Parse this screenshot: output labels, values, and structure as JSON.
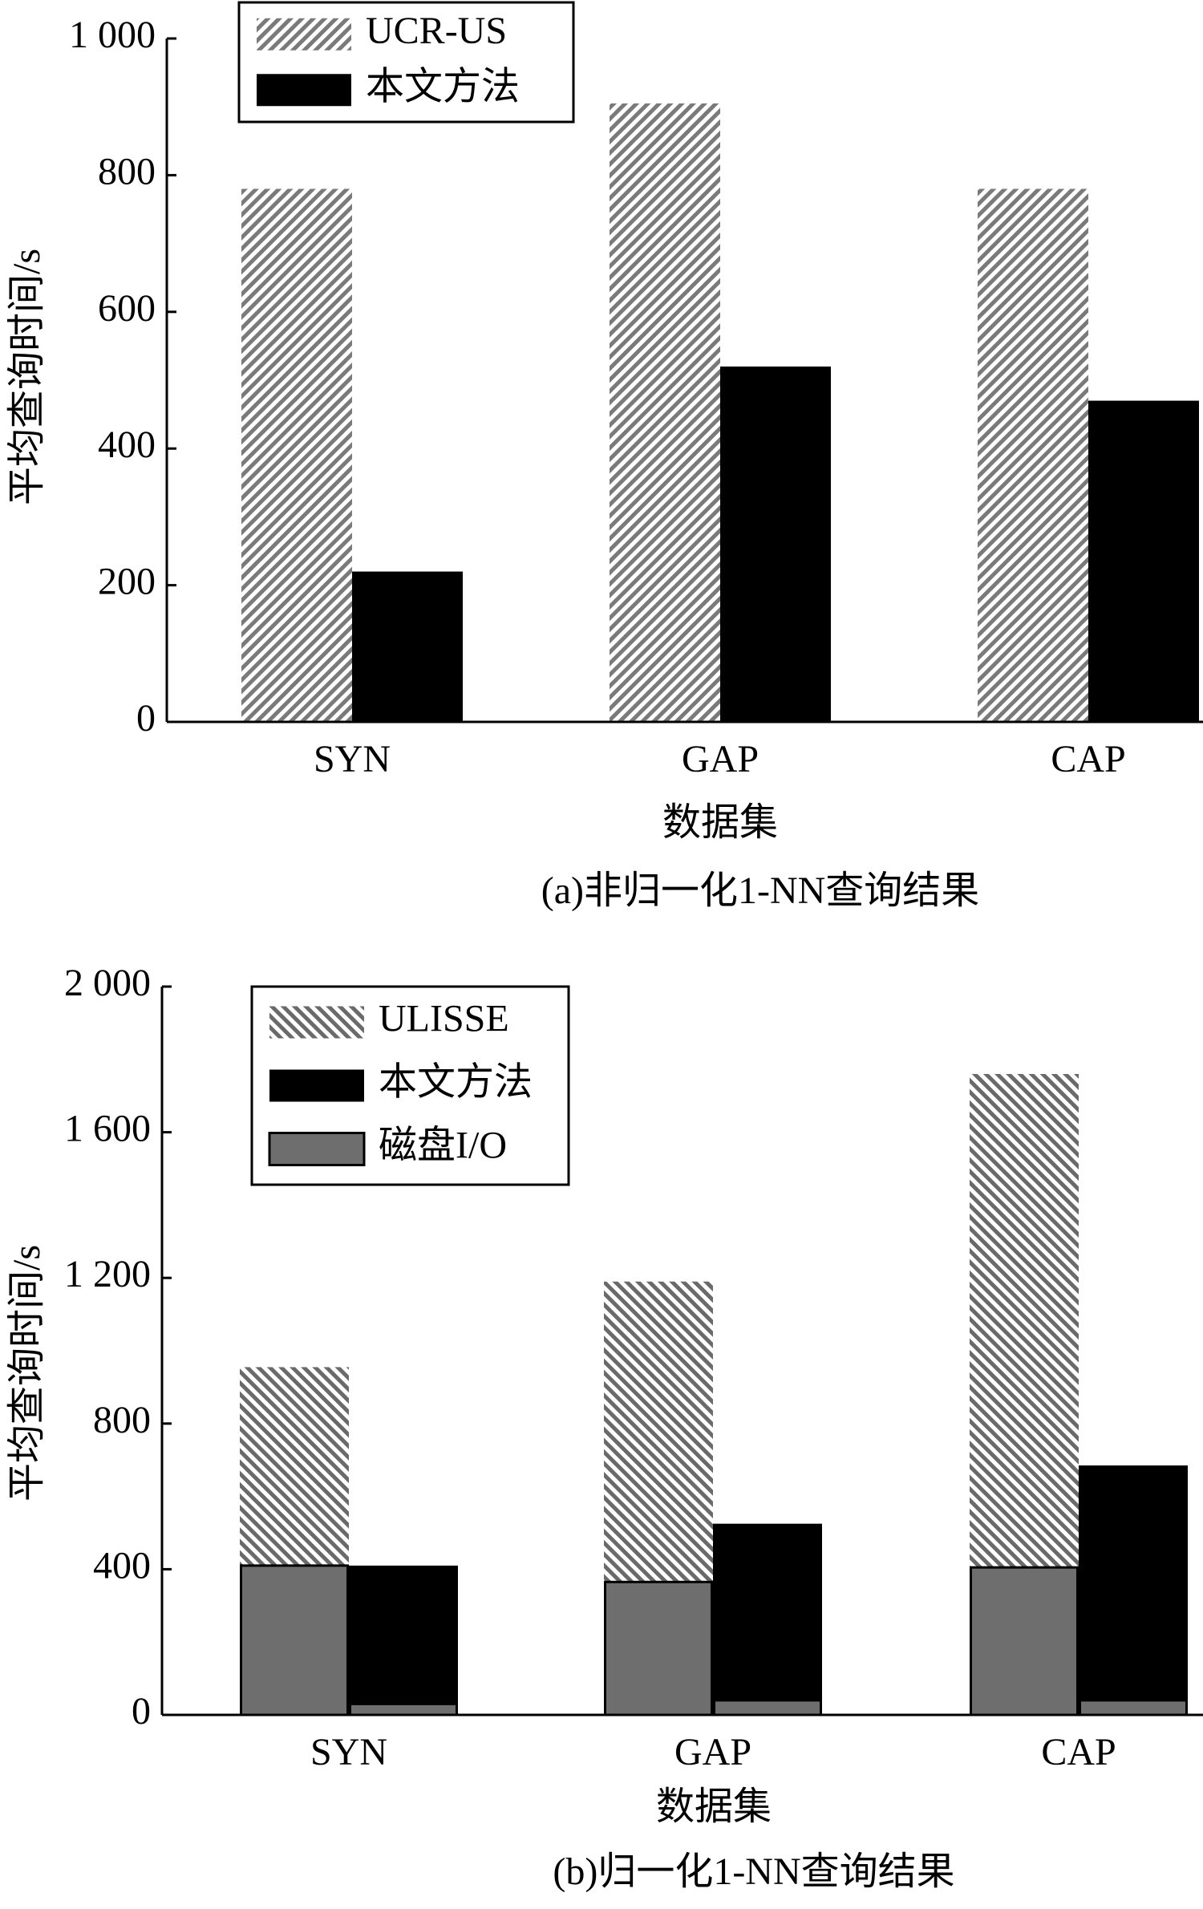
{
  "chart_data": [
    {
      "type": "bar",
      "title": "(a)非归一化1-NN查询结果",
      "xlabel": "数据集",
      "ylabel": "平均查询时间/s",
      "categories": [
        "SYN",
        "GAP",
        "CAP"
      ],
      "series": [
        {
          "name": "UCR-US",
          "color": "#7a7a7a",
          "hatch": "/",
          "values": [
            780,
            905,
            780
          ]
        },
        {
          "name": "本文方法",
          "color": "#000000",
          "values": [
            220,
            520,
            470
          ]
        }
      ],
      "ylim": [
        0,
        1000
      ],
      "yticks": [
        0,
        200,
        400,
        600,
        800,
        {
          "value": 1000,
          "label": "1 000"
        }
      ]
    },
    {
      "type": "bar",
      "title": "(b)归一化1-NN查询结果",
      "xlabel": "数据集",
      "ylabel": "平均查询时间/s",
      "categories": [
        "SYN",
        "GAP",
        "CAP"
      ],
      "series": [
        {
          "name": "ULISSE",
          "color": "#6a6a6a",
          "hatch": "\\",
          "values": [
            955,
            1190,
            1760
          ],
          "disk_io_values": [
            410,
            365,
            405
          ]
        },
        {
          "name": "本文方法",
          "color": "#000000",
          "values": [
            410,
            525,
            685
          ],
          "disk_io_values": [
            30,
            40,
            40
          ]
        },
        {
          "name": "磁盘I/O",
          "color": "#6e6e6e"
        }
      ],
      "ylim": [
        0,
        2000
      ],
      "yticks": [
        0,
        400,
        800,
        {
          "value": 1200,
          "label": "1 200"
        },
        {
          "value": 1600,
          "label": "1 600"
        },
        {
          "value": 2000,
          "label": "2 000"
        }
      ]
    }
  ]
}
